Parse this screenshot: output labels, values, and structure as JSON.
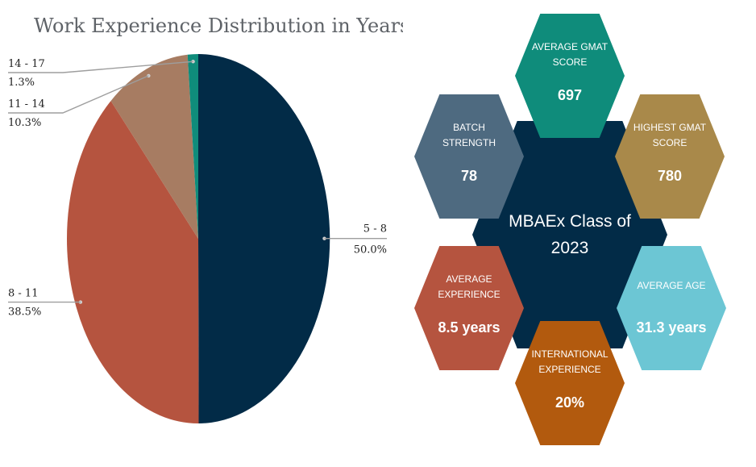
{
  "chart_data": {
    "type": "pie",
    "title": "Work Experience Distribution in Years",
    "slices": [
      {
        "label": "5 - 8",
        "value": 50.0,
        "value_label": "50.0%",
        "color": "#022b47"
      },
      {
        "label": "8 - 11",
        "value": 38.5,
        "value_label": "38.5%",
        "color": "#b5543f"
      },
      {
        "label": "11 - 14",
        "value": 10.3,
        "value_label": "10.3%",
        "color": "#a77c62"
      },
      {
        "label": "14 - 17",
        "value": 1.3,
        "value_label": "1.3%",
        "color": "#0f8c7b"
      }
    ],
    "legend": "none",
    "leader_color": "#9e9e9e"
  },
  "infographic": {
    "center": {
      "line1": "MBAEx Class of",
      "line2": "2023",
      "color": "#022b47"
    },
    "stats": [
      {
        "key": "avg-gmat",
        "label_lines": [
          "AVERAGE GMAT",
          "SCORE"
        ],
        "value": "697",
        "color": "#0f8c7b"
      },
      {
        "key": "batch-strength",
        "label_lines": [
          "BATCH",
          "STRENGTH"
        ],
        "value": "78",
        "color": "#4e6a80"
      },
      {
        "key": "highest-gmat",
        "label_lines": [
          "HIGHEST GMAT",
          "SCORE"
        ],
        "value": "780",
        "color": "#a9894a"
      },
      {
        "key": "avg-experience",
        "label_lines": [
          "AVERAGE",
          "EXPERIENCE"
        ],
        "value": "8.5 years",
        "color": "#b5543f"
      },
      {
        "key": "avg-age",
        "label_lines": [
          "AVERAGE AGE"
        ],
        "value": "31.3 years",
        "color": "#6cc6d4"
      },
      {
        "key": "intl-experience",
        "label_lines": [
          "INTERNATIONAL",
          "EXPERIENCE"
        ],
        "value": "20%",
        "color": "#b25a0e"
      }
    ]
  }
}
